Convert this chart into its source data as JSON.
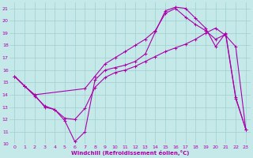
{
  "xlabel": "Windchill (Refroidissement éolien,°C)",
  "xlim": [
    -0.5,
    23.5
  ],
  "ylim": [
    10,
    21.5
  ],
  "yticks": [
    10,
    11,
    12,
    13,
    14,
    15,
    16,
    17,
    18,
    19,
    20,
    21
  ],
  "xticks": [
    0,
    1,
    2,
    3,
    4,
    5,
    6,
    7,
    8,
    9,
    10,
    11,
    12,
    13,
    14,
    15,
    16,
    17,
    18,
    19,
    20,
    21,
    22,
    23
  ],
  "background_color": "#c5e8e8",
  "grid_color": "#9fcfcf",
  "line_color": "#aa00aa",
  "curve1_x": [
    0,
    1,
    2,
    3,
    4,
    5,
    6,
    7,
    8,
    9,
    10,
    11,
    12,
    13,
    14,
    15,
    16,
    17,
    18,
    19,
    20,
    21,
    22,
    23
  ],
  "curve1_y": [
    15.5,
    14.7,
    13.9,
    13.1,
    12.8,
    11.9,
    10.2,
    11.0,
    15.2,
    16.0,
    16.2,
    16.4,
    16.7,
    17.3,
    19.1,
    20.8,
    21.1,
    21.0,
    20.2,
    19.4,
    17.9,
    19.0,
    13.8,
    11.2
  ],
  "curve2_x": [
    0,
    1,
    2,
    7,
    8,
    9,
    10,
    11,
    12,
    13,
    14,
    15,
    16,
    17,
    18,
    19,
    20,
    21,
    22,
    23
  ],
  "curve2_y": [
    15.5,
    14.7,
    14.0,
    14.5,
    15.5,
    16.5,
    17.0,
    17.5,
    18.0,
    18.5,
    19.2,
    20.6,
    21.0,
    20.3,
    19.7,
    19.2,
    18.5,
    18.9,
    13.7,
    11.2
  ],
  "curve3_x": [
    0,
    1,
    2,
    3,
    4,
    5,
    6,
    7,
    8,
    9,
    10,
    11,
    12,
    13,
    14,
    15,
    16,
    17,
    18,
    19,
    20,
    21,
    22,
    23
  ],
  "curve3_y": [
    15.5,
    14.7,
    14.0,
    13.0,
    12.8,
    12.1,
    12.0,
    12.9,
    14.6,
    15.4,
    15.8,
    16.0,
    16.3,
    16.7,
    17.1,
    17.5,
    17.8,
    18.1,
    18.5,
    19.0,
    19.4,
    18.8,
    17.9,
    11.2
  ]
}
